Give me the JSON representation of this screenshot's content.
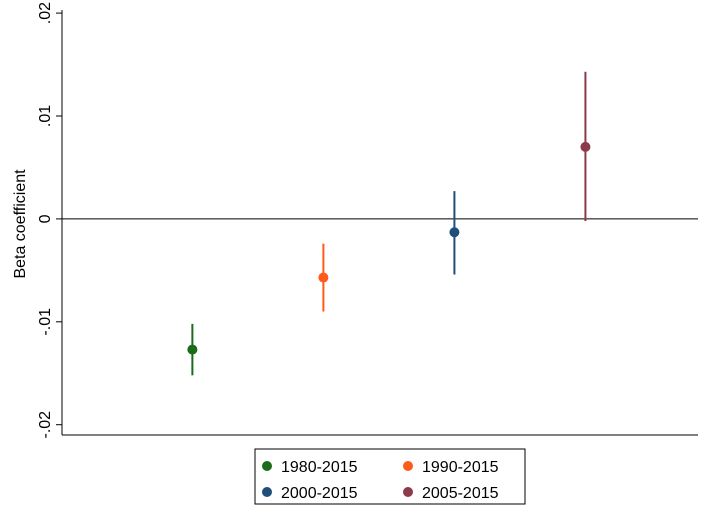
{
  "chart_data": {
    "type": "scatter",
    "title": "",
    "xlabel": "",
    "ylabel": "Beta coefficient",
    "ylim": [
      -0.021,
      0.0203
    ],
    "yticks": [
      {
        "value": 0.02,
        "label": ".02"
      },
      {
        "value": 0.01,
        "label": ".01"
      },
      {
        "value": 0,
        "label": "0"
      },
      {
        "value": -0.01,
        "label": "-.01"
      },
      {
        "value": -0.02,
        "label": "-.02"
      }
    ],
    "reference_line": 0,
    "grid": false,
    "legend_position": "bottom",
    "series": [
      {
        "name": "1980-2015",
        "color": "#1a6b1a",
        "value": -0.0127,
        "ci": [
          -0.0152,
          -0.0102
        ]
      },
      {
        "name": "1990-2015",
        "color": "#ff5a1a",
        "value": -0.0057,
        "ci": [
          -0.009,
          -0.0024
        ]
      },
      {
        "name": "2000-2015",
        "color": "#1f4e79",
        "value": -0.0013,
        "ci": [
          -0.0054,
          0.0027
        ]
      },
      {
        "name": "2005-2015",
        "color": "#8b3a4a",
        "value": 0.007,
        "ci": [
          -0.0002,
          0.0143
        ]
      }
    ]
  }
}
